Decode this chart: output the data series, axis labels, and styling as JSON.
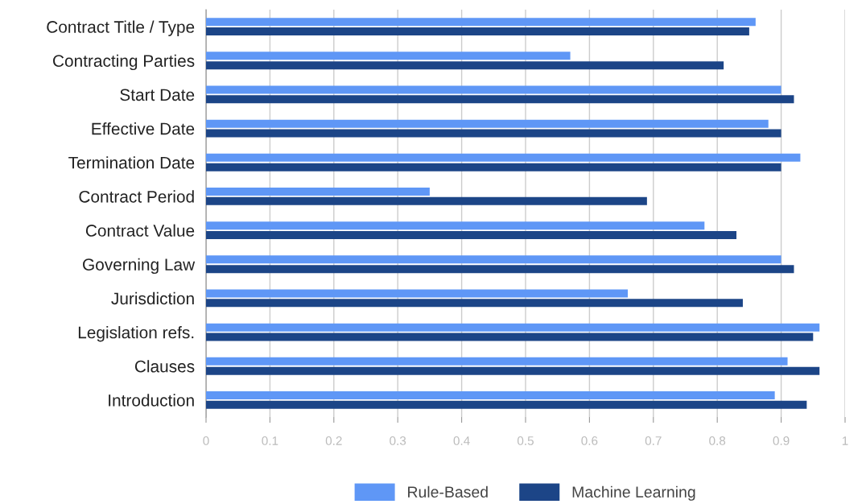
{
  "chart_data": {
    "type": "bar",
    "orientation": "horizontal",
    "categories": [
      "Contract Title / Type",
      "Contracting Parties",
      "Start Date",
      "Effective Date",
      "Termination Date",
      "Contract Period",
      "Contract Value",
      "Governing Law",
      "Jurisdiction",
      "Legislation refs.",
      "Clauses",
      "Introduction"
    ],
    "series": [
      {
        "name": "Rule-Based",
        "color": "#5f97f6",
        "values": [
          0.86,
          0.57,
          0.9,
          0.88,
          0.93,
          0.35,
          0.78,
          0.9,
          0.66,
          0.96,
          0.91,
          0.89
        ]
      },
      {
        "name": "Machine Learning",
        "color": "#1c4587",
        "values": [
          0.85,
          0.81,
          0.92,
          0.9,
          0.9,
          0.69,
          0.83,
          0.92,
          0.84,
          0.95,
          0.96,
          0.94
        ]
      }
    ],
    "xlim": [
      0,
      1
    ],
    "xticks": [
      0,
      0.1,
      0.2,
      0.3,
      0.4,
      0.5,
      0.6,
      0.7,
      0.8,
      0.9,
      1
    ],
    "grid": "x",
    "legend": "bottom"
  }
}
